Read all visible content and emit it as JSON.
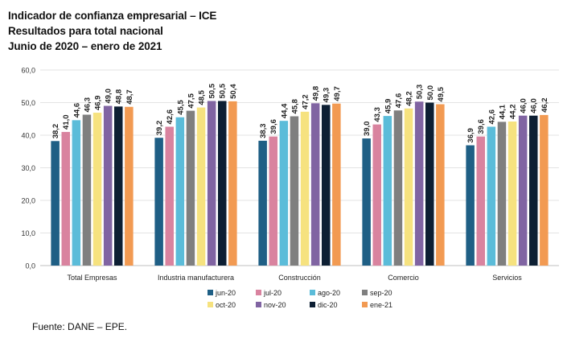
{
  "header": {
    "title": "Indicador de confianza empresarial – ICE",
    "subtitle": "Resultados para total nacional",
    "period": "Junio de 2020 – enero de 2021"
  },
  "source": "Fuente: DANE – EPE.",
  "chart_data": {
    "type": "bar",
    "title": "Indicador de confianza empresarial – ICE",
    "xlabel": "",
    "ylabel": "",
    "ylim": [
      0,
      60
    ],
    "yticks": [
      "0,0",
      "10,0",
      "20,0",
      "30,0",
      "40,0",
      "50,0",
      "60,0"
    ],
    "grid": true,
    "legend_position": "bottom",
    "categories": [
      "Total Empresas",
      "Industria manufacturera",
      "Construcción",
      "Comercio",
      "Servicios"
    ],
    "series": [
      {
        "name": "jun-20",
        "color": "#1F5F85",
        "values": [
          38.2,
          39.2,
          38.3,
          39.0,
          36.9
        ],
        "labels": [
          "38,2",
          "39,2",
          "38,3",
          "39,0",
          "36,9"
        ]
      },
      {
        "name": "jul-20",
        "color": "#D9839F",
        "values": [
          41.0,
          42.6,
          39.6,
          43.3,
          39.6
        ],
        "labels": [
          "41,0",
          "42,6",
          "39,6",
          "43,3",
          "39,6"
        ]
      },
      {
        "name": "ago-20",
        "color": "#5BBCD9",
        "values": [
          44.6,
          45.5,
          44.4,
          45.9,
          42.6
        ],
        "labels": [
          "44,6",
          "45,5",
          "44,4",
          "45,9",
          "42,6"
        ]
      },
      {
        "name": "sep-20",
        "color": "#7F7F7F",
        "values": [
          46.3,
          47.5,
          45.8,
          47.6,
          44.1
        ],
        "labels": [
          "46,3",
          "47,5",
          "45,8",
          "47,6",
          "44,1"
        ]
      },
      {
        "name": "oct-20",
        "color": "#F6E27F",
        "values": [
          46.9,
          48.5,
          47.2,
          48.2,
          44.2
        ],
        "labels": [
          "46,9",
          "48,5",
          "47,2",
          "48,2",
          "44,2"
        ]
      },
      {
        "name": "nov-20",
        "color": "#8064A2",
        "values": [
          49.0,
          50.5,
          49.8,
          50.3,
          46.0
        ],
        "labels": [
          "49,0",
          "50,5",
          "49,8",
          "50,3",
          "46,0"
        ]
      },
      {
        "name": "dic-20",
        "color": "#0D1F33",
        "values": [
          48.8,
          50.5,
          49.3,
          50.0,
          46.0
        ],
        "labels": [
          "48,8",
          "50,5",
          "49,3",
          "50,0",
          "46,0"
        ]
      },
      {
        "name": "ene-21",
        "color": "#F29A52",
        "values": [
          48.7,
          50.4,
          49.7,
          49.5,
          46.2
        ],
        "labels": [
          "48,7",
          "50,4",
          "49,7",
          "49,5",
          "46,2"
        ]
      }
    ]
  }
}
